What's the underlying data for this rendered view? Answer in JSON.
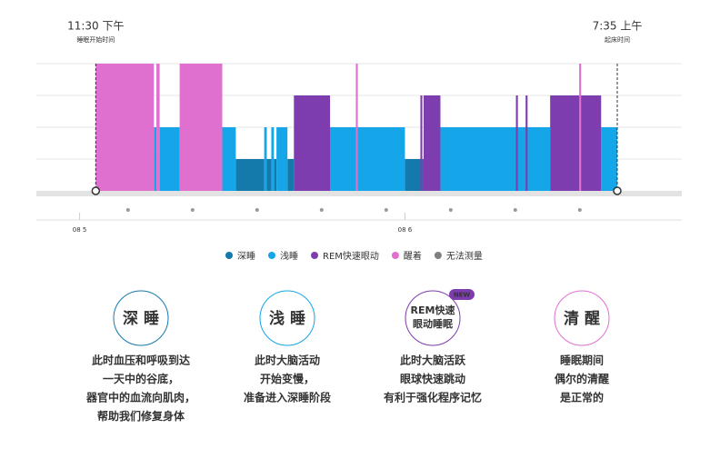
{
  "chart_data": {
    "type": "hypnogram",
    "start": {
      "value": 23.5,
      "label": "11:30 下午",
      "caption": "睡眠开始时间"
    },
    "end": {
      "value": 31.58,
      "label": "7:35 上午",
      "caption": "起床时间"
    },
    "xlim": [
      22.58,
      32.58
    ],
    "xticks": [
      {
        "value": 23.25,
        "label": "08 5"
      },
      {
        "value": 28.29,
        "label": "08 6"
      }
    ],
    "hour_dots": [
      24,
      25,
      26,
      27,
      28,
      29,
      30,
      31
    ],
    "series": [
      {
        "name": "深睡",
        "color": "#1479ab",
        "segments": [
          [
            25.67,
            26.11
          ],
          [
            26.15,
            26.22
          ],
          [
            26.26,
            26.3
          ],
          [
            26.47,
            26.57
          ],
          [
            28.29,
            28.58
          ]
        ]
      },
      {
        "name": "浅睡",
        "color": "#14a6e8",
        "segments": [
          [
            24.4,
            24.44
          ],
          [
            24.49,
            24.8
          ],
          [
            25.46,
            25.67
          ],
          [
            26.11,
            26.15
          ],
          [
            26.22,
            26.26
          ],
          [
            26.3,
            26.47
          ],
          [
            27.13,
            28.29
          ],
          [
            28.84,
            30.54
          ],
          [
            31.33,
            31.58
          ]
        ]
      },
      {
        "name": "REM快速眼动",
        "color": "#7d3dae",
        "segments": [
          [
            26.57,
            27.13
          ],
          [
            28.53,
            28.56
          ],
          [
            28.58,
            28.84
          ],
          [
            30.01,
            30.04
          ],
          [
            30.16,
            30.19
          ],
          [
            30.54,
            31.33
          ]
        ]
      },
      {
        "name": "醒着",
        "color": "#e070d0",
        "segments": [
          [
            23.5,
            24.4
          ],
          [
            24.44,
            24.49
          ],
          [
            24.8,
            25.46
          ],
          [
            27.53,
            27.56
          ],
          [
            30.99,
            31.02
          ]
        ]
      },
      {
        "name": "无法测量",
        "color": "#808080",
        "segments": []
      }
    ]
  },
  "cards": [
    {
      "title": "深 睡",
      "color": "#1479ab",
      "lines": [
        "此时血压和呼吸到达",
        "一天中的谷底，",
        "器官中的血流向肌肉，",
        "帮助我们修复身体"
      ]
    },
    {
      "title": "浅 睡",
      "color": "#14a6e8",
      "lines": [
        "此时大脑活动",
        "开始变慢，",
        "准备进入深睡阶段"
      ]
    },
    {
      "title": [
        "REM快速",
        "眼动睡眠"
      ],
      "badge": "NEW",
      "color": "#7d3dae",
      "lines": [
        "此时大脑活跃",
        "眼球快速跳动",
        "有利于强化程序记忆"
      ]
    },
    {
      "title": "清 醒",
      "color": "#e070d0",
      "lines": [
        "睡眠期间",
        "偶尔的清醒",
        "是正常的"
      ]
    }
  ]
}
